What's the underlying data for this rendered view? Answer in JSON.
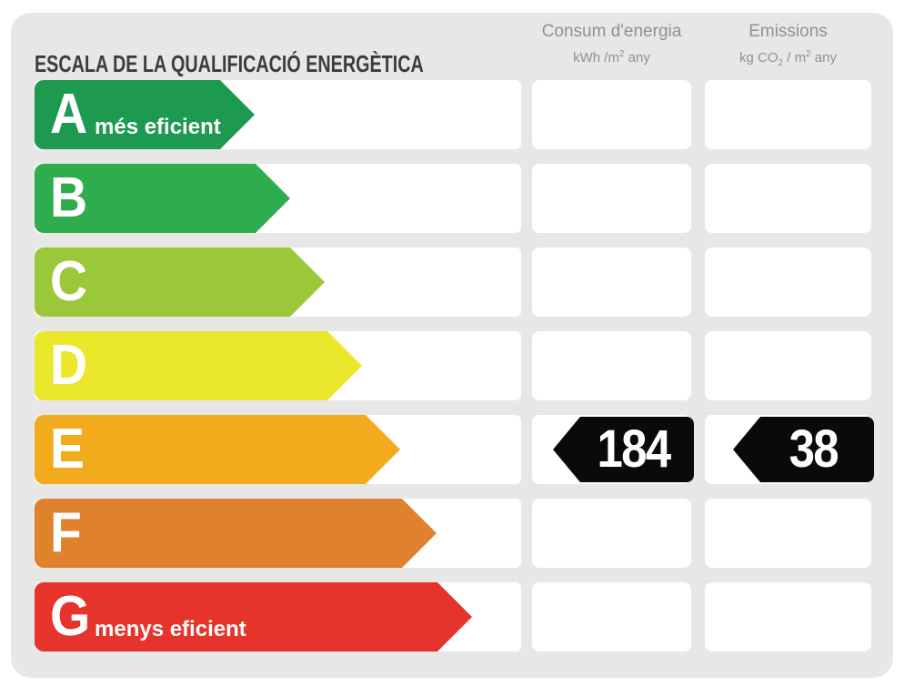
{
  "title": "ESCALA DE LA QUALIFICACIÓ ENERGÈTICA",
  "columns": {
    "consum": {
      "label": "Consum d'energia",
      "unit_pre": "kWh /m",
      "unit_sup": "2",
      "unit_post": " any"
    },
    "emissions": {
      "label": "Emissions",
      "unit_pre": "kg CO",
      "unit_sub": "2",
      "unit_mid": " / m",
      "unit_sup": "2",
      "unit_post": " any"
    }
  },
  "scale": {
    "rows": [
      {
        "grade": "A",
        "label": "més eficient",
        "color": "#1d9a50",
        "arrow_width": 242
      },
      {
        "grade": "B",
        "label": "",
        "color": "#2fad4e",
        "arrow_width": 281
      },
      {
        "grade": "C",
        "label": "",
        "color": "#9bc838",
        "arrow_width": 319
      },
      {
        "grade": "D",
        "label": "",
        "color": "#ebe72b",
        "arrow_width": 360
      },
      {
        "grade": "E",
        "label": "",
        "color": "#f2ab1c",
        "arrow_width": 402
      },
      {
        "grade": "F",
        "label": "",
        "color": "#e0812e",
        "arrow_width": 442
      },
      {
        "grade": "G",
        "label": "menys eficient",
        "color": "#e6332b",
        "arrow_width": 481
      }
    ]
  },
  "rating": {
    "grade": "E",
    "consum_value": "184",
    "emissions_value": "38",
    "marker_color": "#0a0a0a"
  },
  "chart_data": {
    "type": "bar",
    "title": "ESCALA DE LA QUALIFICACIÓ ENERGÈTICA",
    "categories": [
      "A",
      "B",
      "C",
      "D",
      "E",
      "F",
      "G"
    ],
    "values": [
      242,
      281,
      319,
      360,
      402,
      442,
      481
    ],
    "values_meaning": "qualitative arrow lengths (px), A shortest = most efficient, G longest = least efficient",
    "bar_colors": [
      "#1d9a50",
      "#2fad4e",
      "#9bc838",
      "#ebe72b",
      "#f2ab1c",
      "#e0812e",
      "#e6332b"
    ],
    "annotations": {
      "A": "més eficient",
      "G": "menys eficient"
    },
    "value_columns": [
      "Consum d'energia kWh/m² any",
      "Emissions kg CO₂/m² any"
    ],
    "rating": {
      "grade": "E",
      "consum_kwh_m2_any": 184,
      "emissions_kg_co2_m2_any": 38
    },
    "legend_position": "none",
    "grid": false
  }
}
